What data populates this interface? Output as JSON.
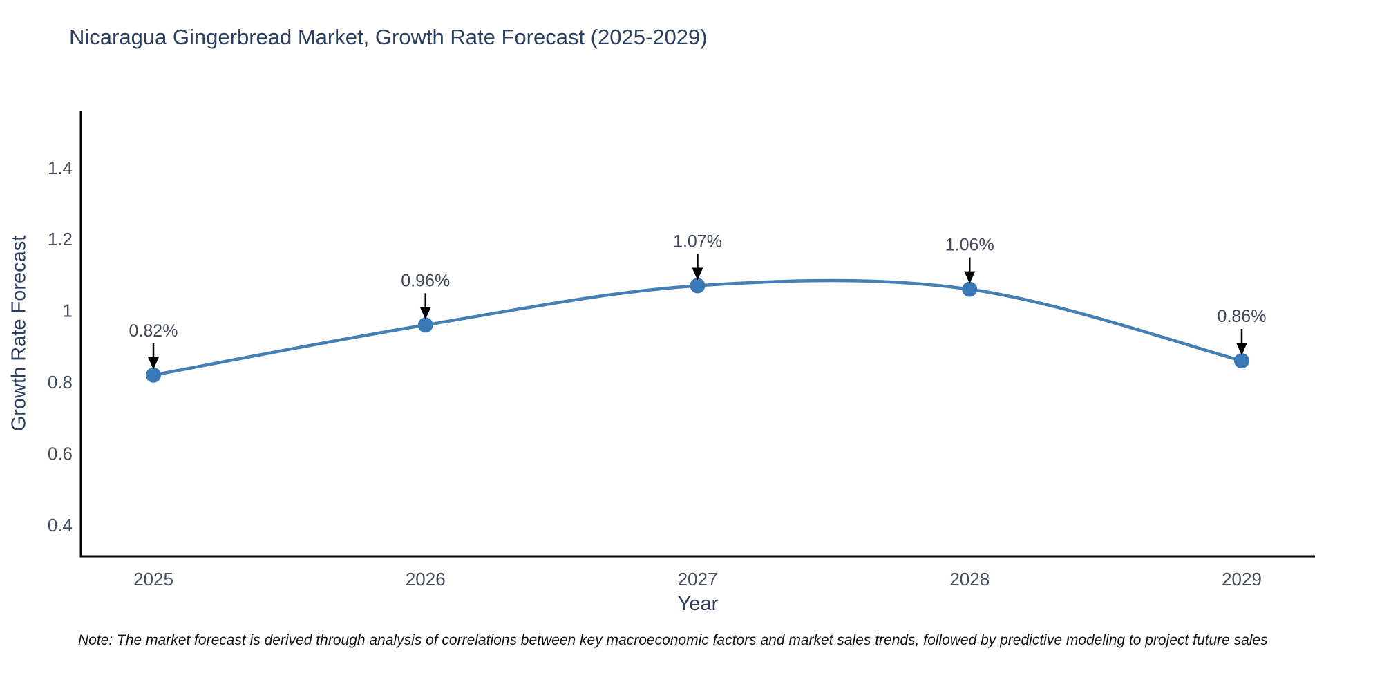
{
  "title": "Nicaragua Gingerbread Market, Growth Rate Forecast (2025-2029)",
  "note": "Note: The market forecast is derived through analysis of correlations between key macroeconomic factors and market sales trends, followed by predictive modeling to project future sales",
  "chart_data": {
    "type": "line",
    "line_shape": "spline",
    "title": "Nicaragua Gingerbread Market, Growth Rate Forecast (2025-2029)",
    "xlabel": "Year",
    "ylabel": "Growth Rate Forecast",
    "x": [
      2025,
      2026,
      2027,
      2028,
      2029
    ],
    "values": [
      0.82,
      0.96,
      1.07,
      1.06,
      0.86
    ],
    "point_labels": [
      "0.82%",
      "0.96%",
      "1.07%",
      "1.06%",
      "0.86%"
    ],
    "x_tick_labels": [
      "2025",
      "2026",
      "2027",
      "2028",
      "2029"
    ],
    "yticks": [
      0.4,
      0.6,
      0.8,
      1,
      1.2,
      1.4
    ],
    "ytick_labels": [
      "0.4",
      "0.6",
      "0.8",
      "1",
      "1.2",
      "1.4"
    ],
    "ylim": [
      0.313,
      1.56
    ],
    "grid": false,
    "legend": "none",
    "colors": {
      "line": "#4580b4",
      "marker": "#3878b4",
      "arrow": "#000000",
      "axis": "#000000",
      "title": "#2d3f5e",
      "tick": "#444d5c"
    }
  }
}
